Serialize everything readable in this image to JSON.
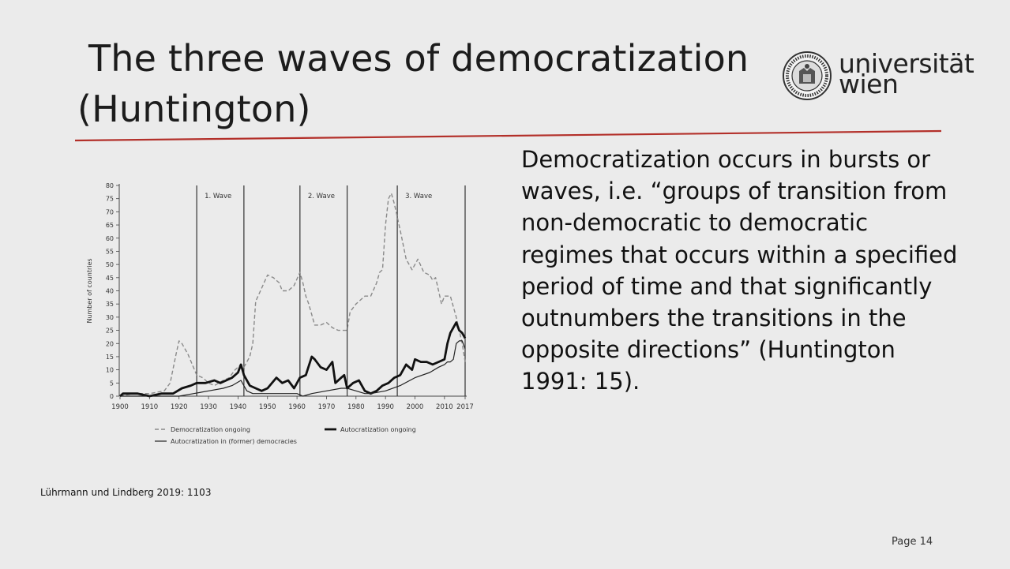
{
  "slide": {
    "title_line1": "The three waves of democratization",
    "title_line2": "(Huntington)",
    "body": "Democratization occurs in bursts or waves, i.e. “groups of transition from non-democratic to democratic regimes that occurs within a specified period of time and that significantly outnumbers the transitions in the opposite directions” (Huntington 1991: 15).",
    "source": "Lührmann und Lindberg 2019:  1103",
    "page": "Page 14",
    "accent_color": "#b3302a"
  },
  "logo": {
    "word1": "universität",
    "word2": "wien",
    "icon": "university-seal-icon"
  },
  "chart_data": {
    "type": "line",
    "title": "",
    "xlabel": "",
    "ylabel": "Number of countries",
    "xlim": [
      1900,
      2017
    ],
    "ylim": [
      0,
      80
    ],
    "xticks": [
      "1900",
      "1910",
      "1920",
      "1930",
      "1940",
      "1950",
      "1960",
      "1970",
      "1980",
      "1990",
      "2000",
      "2010",
      "2017"
    ],
    "yticks": [
      "0",
      "5",
      "10",
      "15",
      "20",
      "25",
      "30",
      "35",
      "40",
      "45",
      "50",
      "55",
      "60",
      "65",
      "70",
      "75",
      "80"
    ],
    "grid": false,
    "legend_position": "bottom",
    "waves": [
      {
        "label": "1. Wave",
        "start": 1926,
        "end": 1942
      },
      {
        "label": "2. Wave",
        "start": 1961,
        "end": 1977
      },
      {
        "label": "3. Wave",
        "start": 1994,
        "end": 2017
      }
    ],
    "series": [
      {
        "name": "Democratization ongoing",
        "style": "dashed",
        "color": "#8a8a8a",
        "x": [
          1900,
          1905,
          1910,
          1915,
          1917,
          1919,
          1920,
          1921,
          1923,
          1926,
          1928,
          1930,
          1932,
          1935,
          1937,
          1939,
          1941,
          1942,
          1943,
          1944,
          1945,
          1946,
          1948,
          1950,
          1952,
          1954,
          1955,
          1957,
          1959,
          1961,
          1962,
          1963,
          1964,
          1966,
          1968,
          1970,
          1972,
          1974,
          1977,
          1978,
          1980,
          1983,
          1985,
          1987,
          1988,
          1989,
          1990,
          1991,
          1992,
          1993,
          1995,
          1997,
          1999,
          2001,
          2003,
          2005,
          2006,
          2007,
          2008,
          2009,
          2010,
          2012,
          2014,
          2016,
          2017
        ],
        "y": [
          0,
          1,
          1,
          2,
          5,
          16,
          21,
          20,
          16,
          8,
          7,
          5,
          4,
          6,
          7,
          10,
          12,
          11,
          13,
          15,
          20,
          36,
          41,
          46,
          45,
          43,
          40,
          40,
          42,
          47,
          43,
          38,
          35,
          27,
          27,
          28,
          26,
          25,
          25,
          32,
          35,
          38,
          38,
          43,
          47,
          48,
          65,
          75,
          77,
          73,
          63,
          52,
          48,
          52,
          47,
          46,
          44,
          45,
          40,
          35,
          38,
          38,
          30,
          20,
          13
        ]
      },
      {
        "name": "Autocratization ongoing",
        "style": "solid-thick",
        "color": "#111111",
        "x": [
          1900,
          1901,
          1903,
          1906,
          1910,
          1914,
          1918,
          1921,
          1924,
          1926,
          1929,
          1932,
          1934,
          1936,
          1938,
          1940,
          1941,
          1942,
          1944,
          1946,
          1948,
          1950,
          1953,
          1955,
          1957,
          1959,
          1960,
          1961,
          1963,
          1965,
          1966,
          1968,
          1970,
          1972,
          1973,
          1975,
          1976,
          1977,
          1979,
          1981,
          1983,
          1985,
          1987,
          1989,
          1991,
          1993,
          1995,
          1997,
          1999,
          2000,
          2002,
          2004,
          2006,
          2008,
          2010,
          2011,
          2012,
          2013,
          2014,
          2015,
          2016,
          2017
        ],
        "y": [
          0,
          1,
          1,
          1,
          0,
          1,
          1,
          3,
          4,
          5,
          5,
          6,
          5,
          6,
          7,
          9,
          12,
          8,
          4,
          3,
          2,
          3,
          7,
          5,
          6,
          3,
          5,
          7,
          8,
          15,
          14,
          11,
          10,
          13,
          5,
          7,
          8,
          3,
          5,
          6,
          2,
          1,
          2,
          4,
          5,
          7,
          8,
          12,
          10,
          14,
          13,
          13,
          12,
          13,
          14,
          20,
          24,
          26,
          28,
          25,
          24,
          22
        ]
      },
      {
        "name": "Autocratization in (former) democracies",
        "style": "solid",
        "color": "#222222",
        "x": [
          1900,
          1910,
          1920,
          1925,
          1930,
          1935,
          1938,
          1941,
          1943,
          1945,
          1950,
          1955,
          1960,
          1962,
          1965,
          1970,
          1975,
          1977,
          1980,
          1983,
          1985,
          1990,
          1995,
          2000,
          2005,
          2008,
          2010,
          2011,
          2012,
          2013,
          2014,
          2015,
          2016,
          2017
        ],
        "y": [
          0,
          0,
          0,
          1,
          2,
          3,
          4,
          6,
          2,
          1,
          1,
          1,
          1,
          0,
          1,
          2,
          3,
          3,
          2,
          1,
          1,
          2,
          4,
          7,
          9,
          11,
          12,
          13,
          13,
          14,
          20,
          21,
          21,
          18
        ]
      }
    ]
  }
}
